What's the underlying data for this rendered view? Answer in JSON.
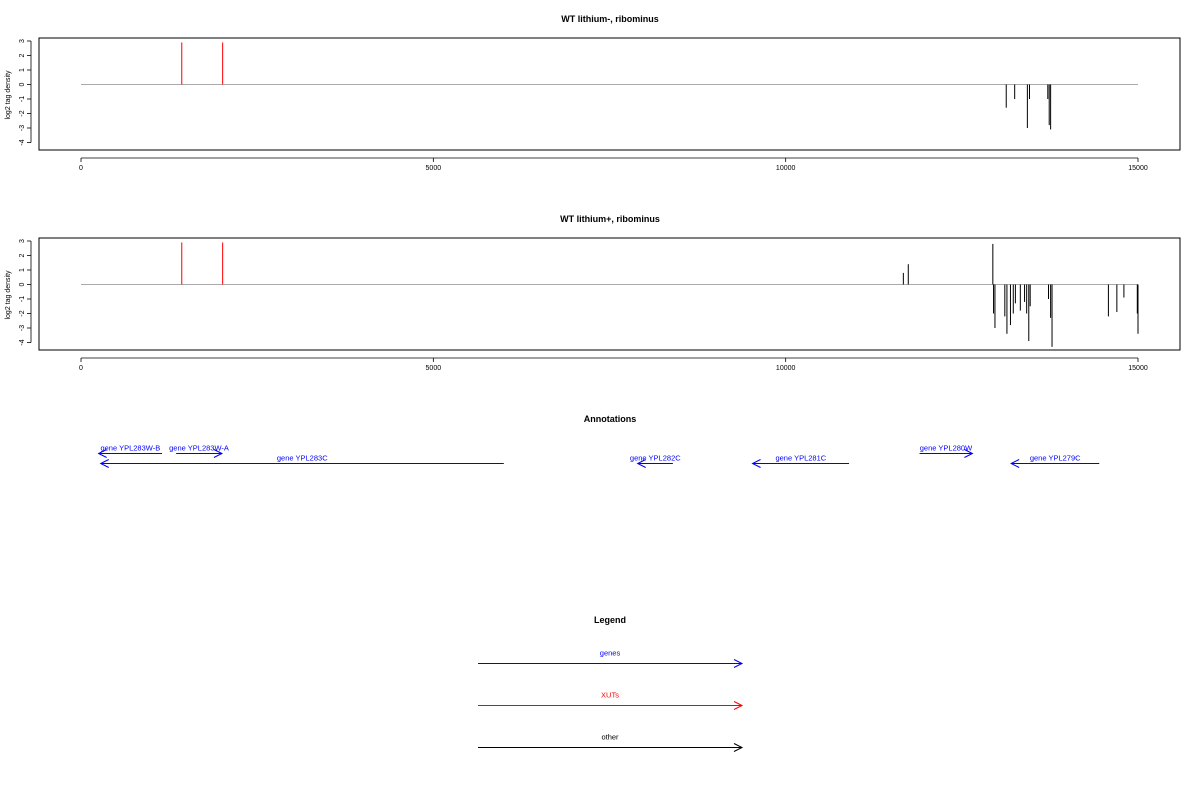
{
  "chart_data": [
    {
      "type": "bar",
      "title": "WT lithium-, ribominus",
      "ylabel": "log2 tag density",
      "xlim": [
        0,
        15000
      ],
      "ylim": [
        -4.5,
        3.2
      ],
      "x_ticks": [
        0,
        5000,
        10000,
        15000
      ],
      "y_ticks": [
        3,
        2,
        1,
        0,
        -1,
        -2,
        -3,
        -4
      ],
      "baseline": {
        "x_start": 0,
        "x_end": 15000,
        "y": 0
      },
      "series": [
        {
          "color": "#ff0000",
          "bars": [
            [
              1430,
              2.9
            ],
            [
              2010,
              2.9
            ]
          ]
        },
        {
          "color": "#000000",
          "bars": [
            [
              13130,
              -1.6
            ],
            [
              13250,
              -1.0
            ],
            [
              13430,
              -3.0
            ],
            [
              13460,
              -1.0
            ],
            [
              13720,
              -1.0
            ],
            [
              13740,
              -2.8
            ],
            [
              13760,
              -3.1
            ]
          ]
        }
      ]
    },
    {
      "type": "bar",
      "title": "WT lithium+, ribominus",
      "ylabel": "log2 tag density",
      "xlim": [
        0,
        15000
      ],
      "ylim": [
        -4.5,
        3.2
      ],
      "x_ticks": [
        0,
        5000,
        10000,
        15000
      ],
      "y_ticks": [
        3,
        2,
        1,
        0,
        -1,
        -2,
        -3,
        -4
      ],
      "baseline": {
        "x_start": 0,
        "x_end": 15000,
        "y": 0
      },
      "series": [
        {
          "color": "#ff0000",
          "bars": [
            [
              1430,
              2.9
            ],
            [
              2010,
              2.9
            ]
          ]
        },
        {
          "color": "#000000",
          "bars": [
            [
              11670,
              0.8
            ],
            [
              11740,
              1.4
            ],
            [
              12940,
              2.8
            ],
            [
              12950,
              -2.0
            ],
            [
              12970,
              -3.0
            ],
            [
              13110,
              -2.2
            ],
            [
              13140,
              -3.4
            ],
            [
              13190,
              -2.8
            ],
            [
              13230,
              -2.0
            ],
            [
              13260,
              -1.3
            ],
            [
              13330,
              -1.8
            ],
            [
              13390,
              -1.2
            ],
            [
              13420,
              -2.0
            ],
            [
              13450,
              -3.9
            ],
            [
              13470,
              -1.5
            ],
            [
              13730,
              -1.0
            ],
            [
              13760,
              -2.3
            ],
            [
              13780,
              -4.3
            ],
            [
              14580,
              -2.2
            ],
            [
              14700,
              -1.9
            ],
            [
              14800,
              -0.9
            ],
            [
              14990,
              -2.0
            ],
            [
              15000,
              -3.4
            ]
          ]
        }
      ]
    }
  ],
  "annotations": {
    "title": "Annotations",
    "genes": [
      {
        "label": "gene YPL283W-B",
        "start": 1150,
        "end": 250,
        "row": 1
      },
      {
        "label": "gene YPL283W-A",
        "start": 1350,
        "end": 2000,
        "row": 1
      },
      {
        "label": "gene YPL283C",
        "start": 6000,
        "end": 280,
        "row": 2
      },
      {
        "label": "gene YPL282C",
        "start": 8400,
        "end": 7900,
        "row": 2
      },
      {
        "label": "gene YPL281C",
        "start": 10900,
        "end": 9530,
        "row": 2
      },
      {
        "label": "gene YPL280W",
        "start": 11900,
        "end": 12650,
        "row": 1
      },
      {
        "label": "gene YPL279C",
        "start": 14450,
        "end": 13200,
        "row": 2
      }
    ]
  },
  "legend": {
    "title": "Legend",
    "items": [
      {
        "label": "genes",
        "color": "#0000ff"
      },
      {
        "label": "XUTs",
        "color": "#ff0000"
      },
      {
        "label": "other",
        "color": "#000000"
      }
    ]
  }
}
